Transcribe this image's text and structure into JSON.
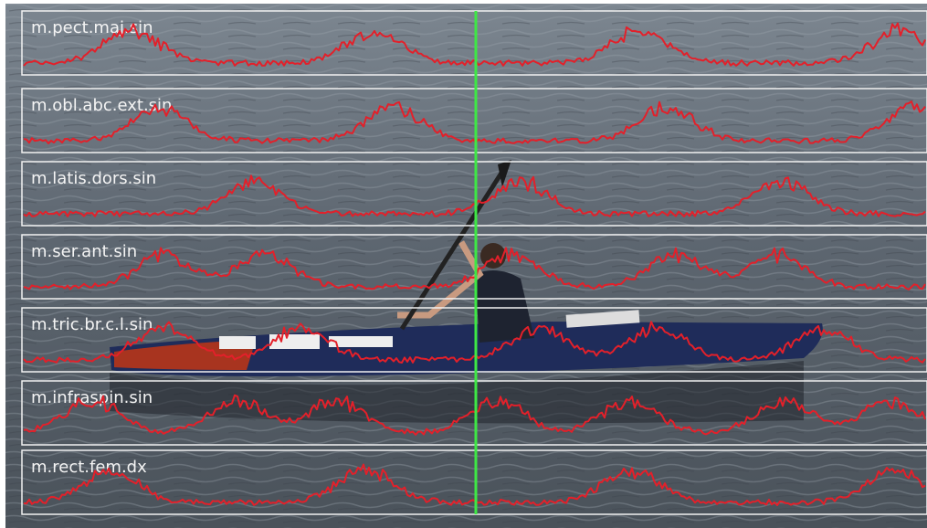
{
  "channels": [
    "m.pect.maj.sin",
    "m.obl.abc.ext.sin",
    "m.latis.dors.sin",
    "m.ser.ant.sin",
    "m.tric.br.c.l.sin",
    "m.infraspin.sin",
    "m.rect.fem.dx"
  ]
}
